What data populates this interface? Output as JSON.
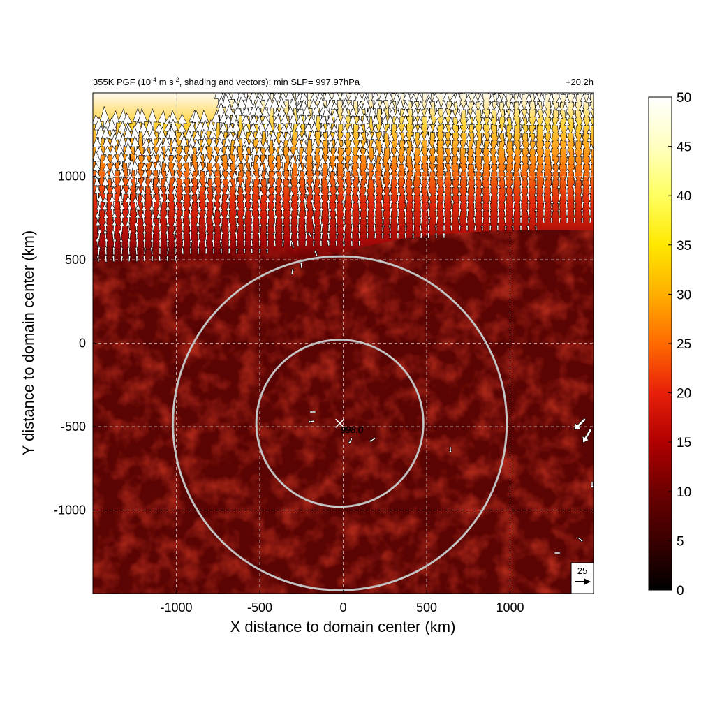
{
  "chart_data": {
    "type": "heatmap",
    "title": {
      "lead": "355K PGF (10",
      "sup1": "-4",
      "mid": " m s",
      "sup2": "-2",
      "tail": ", shading and vectors); min SLP= 997.97hPa"
    },
    "time_label": "+20.2h",
    "xlabel": "X distance to domain center (km)",
    "ylabel": "Y distance to domain center (km)",
    "xlim": [
      -1500,
      1500
    ],
    "ylim": [
      -1500,
      1500
    ],
    "x_ticks": [
      -1000,
      -500,
      0,
      500,
      1000
    ],
    "y_ticks": [
      -1000,
      -500,
      0,
      500,
      1000
    ],
    "x_tick_labels": [
      "-1000",
      "-500",
      "0",
      "500",
      "1000"
    ],
    "y_tick_labels": [
      "-1000",
      "-500",
      "0",
      "500",
      "1000"
    ],
    "grid": true,
    "colorbar": {
      "range": [
        0,
        50
      ],
      "ticks": [
        0,
        5,
        10,
        15,
        20,
        25,
        30,
        35,
        40,
        45,
        50
      ],
      "tick_labels": [
        "0",
        "5",
        "10",
        "15",
        "20",
        "25",
        "30",
        "35",
        "40",
        "45",
        "50"
      ],
      "colormap": [
        "#000000",
        "#3a0000",
        "#6e0000",
        "#b00000",
        "#e8200a",
        "#ff6a00",
        "#ffae00",
        "#ffe800",
        "#ffff80",
        "#ffffff"
      ]
    },
    "center": {
      "x": -20,
      "y": -480,
      "label": "998.0"
    },
    "range_rings_km": [
      500,
      1000
    ],
    "reference_vector": {
      "value": 25,
      "label": "25"
    },
    "field_description": {
      "background_value": 6,
      "band_north_of_y": 600,
      "max_value_north": 50
    }
  }
}
